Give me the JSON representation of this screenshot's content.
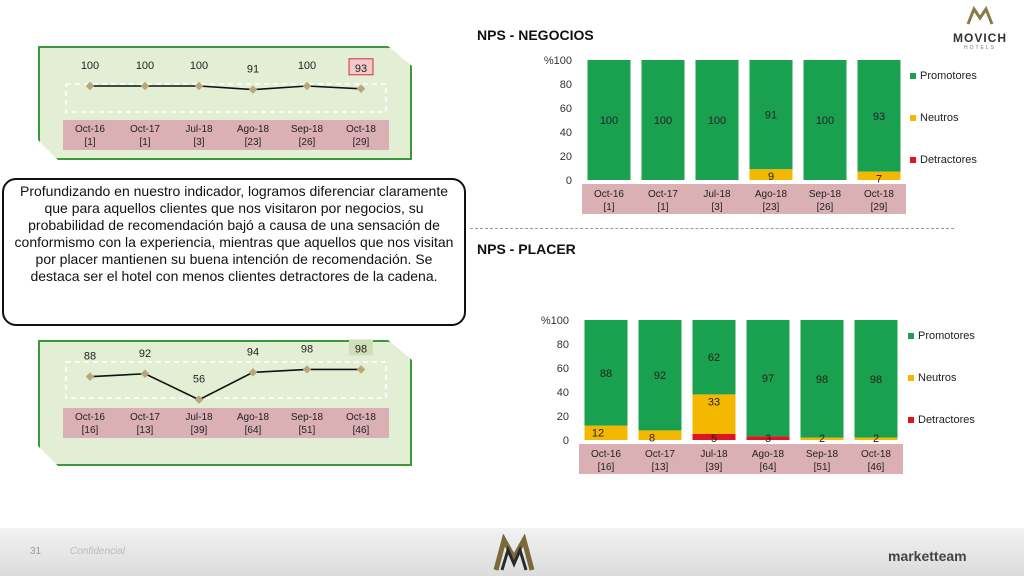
{
  "header": {
    "brand": "MOVICH",
    "brand_sub": "HOTELS",
    "title_negocios": "NPS - NEGOCIOS",
    "title_placer": "NPS - PLACER"
  },
  "note": {
    "text": "Profundizando en nuestro indicador, logramos diferenciar claramente que para aquellos clientes que nos visitaron por negocios, su probabilidad de recomendación bajó a causa de una sensación de conformismo con la experiencia, mientras que aquellos que nos visitan por placer mantienen su buena intención de recomendación. Se destaca ser el hotel con menos clientes detractores de la cadena."
  },
  "footer": {
    "page": "31",
    "confidential": "Confidencial",
    "company": "marketteam"
  },
  "colors": {
    "promotores": "#1aa14f",
    "neutros": "#f5b800",
    "detractores": "#e0141e",
    "label_band": "#dbb0b5",
    "panel_fill": "#e3efd4",
    "panel_border": "#3a9a3a"
  },
  "chart_data": [
    {
      "type": "line",
      "title": "",
      "categories": [
        "Oct-16",
        "Oct-17",
        "Jul-18",
        "Ago-18",
        "Sep-18",
        "Oct-18"
      ],
      "counts": [
        "[1]",
        "[1]",
        "[3]",
        "[23]",
        "[26]",
        "[29]"
      ],
      "series": [
        {
          "name": "",
          "values": [
            100,
            100,
            100,
            91,
            100,
            93
          ]
        }
      ],
      "highlight_last": true
    },
    {
      "type": "line",
      "title": "",
      "categories": [
        "Oct-16",
        "Oct-17",
        "Jul-18",
        "Ago-18",
        "Sep-18",
        "Oct-18"
      ],
      "counts": [
        "[16]",
        "[13]",
        "[39]",
        "[64]",
        "[51]",
        "[46]"
      ],
      "series": [
        {
          "name": "",
          "values": [
            88,
            92,
            56,
            94,
            98,
            98
          ]
        }
      ],
      "highlight_last": true
    },
    {
      "type": "bar",
      "stacked": true,
      "title": "NPS - NEGOCIOS",
      "ylabel": "%",
      "ylim": [
        0,
        100
      ],
      "yticks": [
        0,
        20,
        40,
        60,
        80,
        100
      ],
      "categories": [
        "Oct-16",
        "Oct-17",
        "Jul-18",
        "Ago-18",
        "Sep-18",
        "Oct-18"
      ],
      "counts": [
        "[1]",
        "[1]",
        "[3]",
        "[23]",
        "[26]",
        "[29]"
      ],
      "series": [
        {
          "name": "Detractores",
          "values": [
            0,
            0,
            0,
            0,
            0,
            0
          ],
          "labels": [
            "",
            "",
            "",
            "",
            "",
            ""
          ]
        },
        {
          "name": "Neutros",
          "values": [
            0,
            0,
            0,
            9,
            0,
            7
          ],
          "labels": [
            "",
            "",
            "",
            "9",
            "",
            "7"
          ]
        },
        {
          "name": "Promotores",
          "values": [
            100,
            100,
            100,
            91,
            100,
            93
          ],
          "labels": [
            "100",
            "100",
            "100",
            "91",
            "100",
            "93"
          ]
        }
      ],
      "legend": [
        "Promotores",
        "Neutros",
        "Detractores"
      ],
      "legend_position": "right"
    },
    {
      "type": "bar",
      "stacked": true,
      "title": "NPS - PLACER",
      "ylabel": "%",
      "ylim": [
        0,
        100
      ],
      "yticks": [
        0,
        20,
        40,
        60,
        80,
        100
      ],
      "categories": [
        "Oct-16",
        "Oct-17",
        "Jul-18",
        "Ago-18",
        "Sep-18",
        "Oct-18"
      ],
      "counts": [
        "[16]",
        "[13]",
        "[39]",
        "[64]",
        "[51]",
        "[46]"
      ],
      "series": [
        {
          "name": "Detractores",
          "values": [
            0,
            0,
            5,
            3,
            0,
            0
          ],
          "labels": [
            "",
            "",
            "5",
            "3",
            "",
            ""
          ]
        },
        {
          "name": "Neutros",
          "values": [
            12,
            8,
            33,
            0,
            2,
            2
          ],
          "labels": [
            "12",
            "8",
            "33",
            "",
            "2",
            "2"
          ]
        },
        {
          "name": "Promotores",
          "values": [
            88,
            92,
            62,
            97,
            98,
            98
          ],
          "labels": [
            "88",
            "92",
            "62",
            "97",
            "98",
            "98"
          ]
        }
      ],
      "legend": [
        "Promotores",
        "Neutros",
        "Detractores"
      ],
      "legend_position": "right"
    }
  ]
}
